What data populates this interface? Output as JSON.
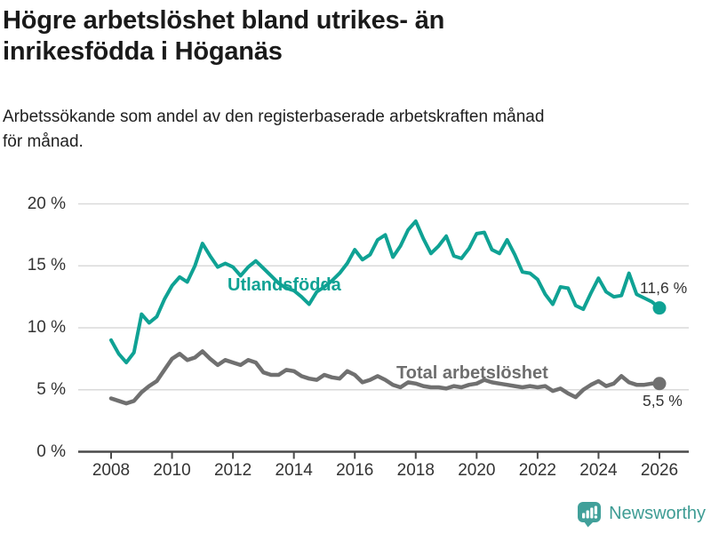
{
  "header": {
    "title_line1": "Högre arbetslöshet bland utrikes- än",
    "title_line2": "inrikesfödda i Höganäs",
    "subtitle_line1": "Arbetssökande som andel av den registerbaserade arbetskraften månad",
    "subtitle_line2": "för månad."
  },
  "footer": {
    "brand": "Newsworthy",
    "logo_icon": "bar-chart-speech-bubble-icon"
  },
  "colors": {
    "series_utlandsfodda": "#0FA294",
    "series_total": "#707070",
    "gridline": "#DADADA",
    "axis": "#4A4A4A",
    "axis_text": "#333333",
    "title_text": "#1A1A1A",
    "brand_teal": "#41A09A"
  },
  "chart_data": {
    "type": "line",
    "title": "Högre arbetslöshet bland utrikes- än inrikesfödda i Höganäs",
    "subtitle": "Arbetssökande som andel av den registerbaserade arbetskraften månad för månad.",
    "xlabel": "",
    "ylabel": "",
    "ylim": [
      0,
      20
    ],
    "yticks": [
      0,
      5,
      10,
      15,
      20
    ],
    "ytick_labels": [
      "0 %",
      "5 %",
      "10 %",
      "15 %",
      "20 %"
    ],
    "xticks": [
      2008,
      2010,
      2012,
      2014,
      2016,
      2018,
      2020,
      2022,
      2024,
      2026
    ],
    "grid": "horizontal",
    "legend_position": "inline-labels",
    "x": [
      2008.0,
      2008.25,
      2008.5,
      2008.75,
      2009.0,
      2009.25,
      2009.5,
      2009.75,
      2010.0,
      2010.25,
      2010.5,
      2010.75,
      2011.0,
      2011.25,
      2011.5,
      2011.75,
      2012.0,
      2012.25,
      2012.5,
      2012.75,
      2013.0,
      2013.25,
      2013.5,
      2013.75,
      2014.0,
      2014.25,
      2014.5,
      2014.75,
      2015.0,
      2015.25,
      2015.5,
      2015.75,
      2016.0,
      2016.25,
      2016.5,
      2016.75,
      2017.0,
      2017.25,
      2017.5,
      2017.75,
      2018.0,
      2018.25,
      2018.5,
      2018.75,
      2019.0,
      2019.25,
      2019.5,
      2019.75,
      2020.0,
      2020.25,
      2020.5,
      2020.75,
      2021.0,
      2021.25,
      2021.5,
      2021.75,
      2022.0,
      2022.25,
      2022.5,
      2022.75,
      2023.0,
      2023.25,
      2023.5,
      2023.75,
      2024.0,
      2024.25,
      2024.5,
      2024.75,
      2025.0,
      2025.25,
      2025.5,
      2025.75,
      2026.0
    ],
    "series": [
      {
        "name": "Utlandsfödda",
        "color": "#0FA294",
        "end_label": "11,6 %",
        "end_value": 11.6,
        "values": [
          9.0,
          7.9,
          7.2,
          8.0,
          11.1,
          10.4,
          10.9,
          12.3,
          13.4,
          14.1,
          13.7,
          15.0,
          16.8,
          15.8,
          14.9,
          15.2,
          14.9,
          14.2,
          14.9,
          15.4,
          14.8,
          14.2,
          13.6,
          13.2,
          13.0,
          12.5,
          11.9,
          12.9,
          13.3,
          13.8,
          14.4,
          15.2,
          16.3,
          15.5,
          15.9,
          17.1,
          17.5,
          15.7,
          16.6,
          17.9,
          18.6,
          17.2,
          16.0,
          16.6,
          17.4,
          15.8,
          15.6,
          16.4,
          17.6,
          17.7,
          16.3,
          16.0,
          17.1,
          15.9,
          14.5,
          14.4,
          13.9,
          12.7,
          11.9,
          13.3,
          13.2,
          11.8,
          11.5,
          12.8,
          14.0,
          12.9,
          12.5,
          12.6,
          14.4,
          12.7,
          12.4,
          12.1,
          11.6
        ]
      },
      {
        "name": "Total arbetslöshet",
        "color": "#707070",
        "end_label": "5,5 %",
        "end_value": 5.5,
        "values": [
          4.3,
          4.1,
          3.9,
          4.1,
          4.8,
          5.3,
          5.7,
          6.6,
          7.5,
          7.9,
          7.4,
          7.6,
          8.1,
          7.5,
          7.0,
          7.4,
          7.2,
          7.0,
          7.4,
          7.2,
          6.4,
          6.2,
          6.2,
          6.6,
          6.5,
          6.1,
          5.9,
          5.8,
          6.2,
          6.0,
          5.9,
          6.5,
          6.2,
          5.6,
          5.8,
          6.1,
          5.8,
          5.4,
          5.2,
          5.6,
          5.5,
          5.3,
          5.2,
          5.2,
          5.1,
          5.3,
          5.2,
          5.4,
          5.5,
          5.8,
          5.6,
          5.5,
          5.4,
          5.3,
          5.2,
          5.3,
          5.2,
          5.3,
          4.9,
          5.1,
          4.7,
          4.4,
          5.0,
          5.4,
          5.7,
          5.3,
          5.5,
          6.1,
          5.6,
          5.4,
          5.4,
          5.5,
          5.5
        ]
      }
    ]
  }
}
